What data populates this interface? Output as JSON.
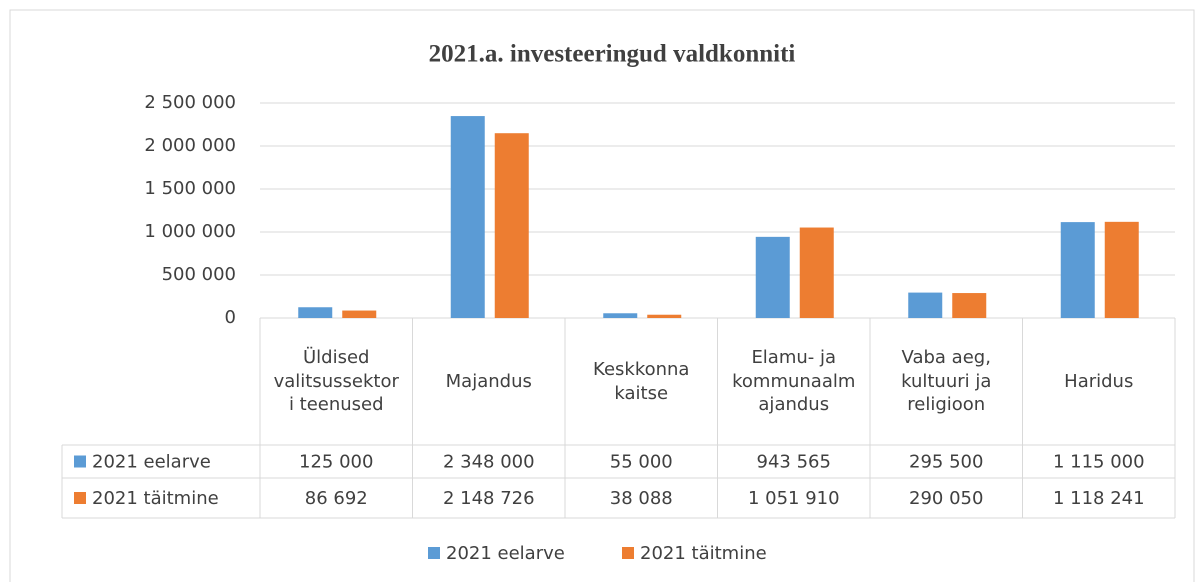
{
  "chart_data": {
    "type": "bar",
    "title": "2021.a. investeeringud valdkonniti",
    "categories": [
      "Üldised valitsussektori teenused",
      "Majandus",
      "Keskkonna kaitse",
      "Elamu- ja kommunaalmajandus",
      "Vaba aeg, kultuuri ja religioon",
      "Haridus"
    ],
    "series": [
      {
        "name": "2021 eelarve",
        "color": "#5b9bd5",
        "values": [
          125000,
          2348000,
          55000,
          943565,
          295500,
          1115000
        ],
        "value_labels": [
          "125 000",
          "2 348 000",
          "55 000",
          "943 565",
          "295 500",
          "1 115 000"
        ]
      },
      {
        "name": "2021 täitmine",
        "color": "#ed7d31",
        "values": [
          86692,
          2148726,
          38088,
          1051910,
          290050,
          1118241
        ],
        "value_labels": [
          "86 692",
          "2 148 726",
          "38 088",
          "1 051 910",
          "290 050",
          "1 118 241"
        ]
      }
    ],
    "ylim": [
      0,
      2500000
    ],
    "yticks": [
      0,
      {
        "value": 500000,
        "label": "500 000"
      },
      {
        "value": 1000000,
        "label": "1 000 000"
      },
      {
        "value": 1500000,
        "label": "1 500 000"
      },
      {
        "value": 2000000,
        "label": "2 000 000"
      },
      {
        "value": 2500000,
        "label": "2 500 000"
      }
    ],
    "grid": true,
    "legend": "bottom"
  }
}
